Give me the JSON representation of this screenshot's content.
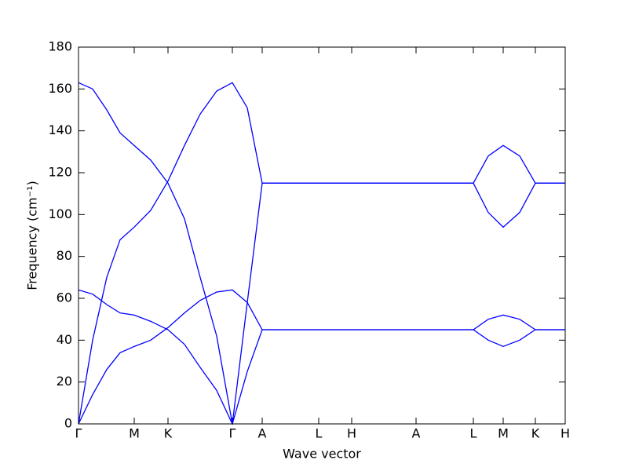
{
  "chart_data": {
    "type": "line",
    "xlabel": "Wave vector",
    "ylabel": "Frequency (cm⁻¹)",
    "x": [
      0,
      0.18,
      0.36,
      0.53,
      0.71,
      0.92,
      1.14,
      1.35,
      1.55,
      1.76,
      1.96,
      2.15,
      2.34,
      3.06,
      3.48,
      4.3,
      5.03,
      5.22,
      5.41,
      5.62,
      5.82,
      6.2
    ],
    "series": [
      {
        "color": "#0000ff",
        "values": [
          163,
          160,
          150,
          139,
          133,
          126,
          115,
          98,
          70,
          42,
          0,
          58,
          115,
          115,
          115,
          115,
          115,
          128,
          133,
          128,
          115,
          115
        ]
      },
      {
        "color": "#0000ff",
        "values": [
          0,
          40,
          70,
          88,
          94,
          102,
          116,
          133,
          148,
          159,
          163,
          151,
          115,
          115,
          115,
          115,
          115,
          101,
          94,
          101,
          115,
          115
        ]
      },
      {
        "color": "#0000ff",
        "values": [
          64,
          62,
          57,
          53,
          52,
          49,
          45,
          38,
          27,
          16,
          0,
          25,
          45,
          45,
          45,
          45,
          45,
          50,
          52,
          50,
          45,
          45
        ]
      },
      {
        "color": "#0000ff",
        "values": [
          0,
          14,
          26,
          34,
          37,
          40,
          46,
          53,
          59,
          63,
          64,
          58,
          45,
          45,
          45,
          45,
          45,
          40,
          37,
          40,
          45,
          45
        ]
      }
    ],
    "xlim": [
      0,
      6.2
    ],
    "xticks": [
      {
        "value": 0,
        "label": "Γ"
      },
      {
        "value": 0.71,
        "label": "M"
      },
      {
        "value": 1.14,
        "label": "K"
      },
      {
        "value": 1.96,
        "label": "Γ"
      },
      {
        "value": 2.34,
        "label": "A"
      },
      {
        "value": 3.06,
        "label": "L"
      },
      {
        "value": 3.48,
        "label": "H"
      },
      {
        "value": 4.3,
        "label": "A"
      },
      {
        "value": 5.03,
        "label": "L"
      },
      {
        "value": 5.41,
        "label": "M"
      },
      {
        "value": 5.82,
        "label": "K"
      },
      {
        "value": 6.2,
        "label": "H"
      }
    ],
    "ylim": [
      0,
      180
    ],
    "yticks": [
      0,
      20,
      40,
      60,
      80,
      100,
      120,
      140,
      160,
      180
    ]
  }
}
